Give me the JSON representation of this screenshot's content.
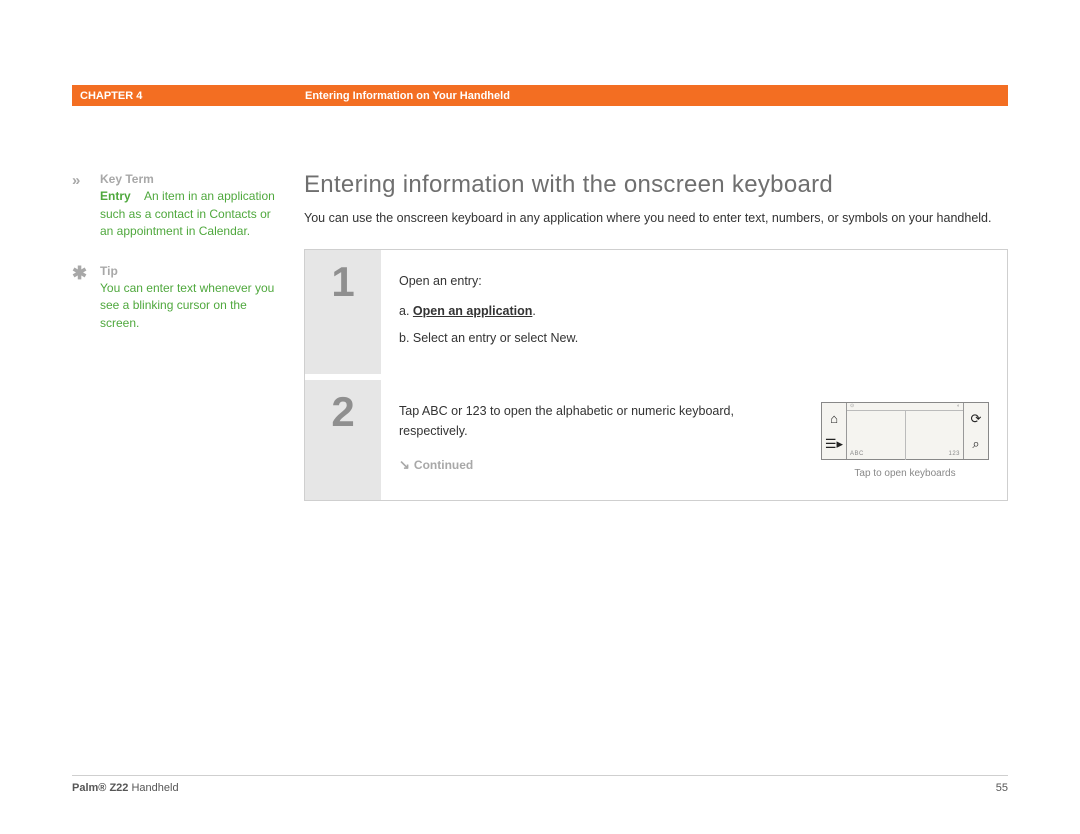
{
  "header": {
    "chapter": "CHAPTER 4",
    "title": "Entering Information on Your Handheld"
  },
  "sidebar": {
    "keyterm": {
      "marker": "»",
      "heading": "Key Term",
      "term": "Entry",
      "def": "An item in an application such as a contact in Contacts or an appointment in Calendar."
    },
    "tip": {
      "marker": "✱",
      "heading": "Tip",
      "text": "You can enter text whenever you see a blinking cursor on the screen."
    }
  },
  "main": {
    "title": "Entering information with the onscreen keyboard",
    "intro": "You can use the onscreen keyboard in any application where you need to enter text, numbers, or symbols on your handheld."
  },
  "steps": [
    {
      "num": "1",
      "lead": "Open an entry:",
      "a_prefix": "a.",
      "a_link": "Open an application",
      "a_suffix": ".",
      "b": "b.  Select an entry or select New."
    },
    {
      "num": "2",
      "text": "Tap ABC or 123 to open the alphabetic or numeric keyboard, respectively.",
      "continued_arrow": "↘",
      "continued": "Continued",
      "kb_caption": "Tap to open keyboards",
      "kb_abc": "ABC",
      "kb_123": "123"
    }
  ],
  "footer": {
    "product_bold": "Palm® Z22",
    "product_rest": " Handheld",
    "page": "55"
  }
}
